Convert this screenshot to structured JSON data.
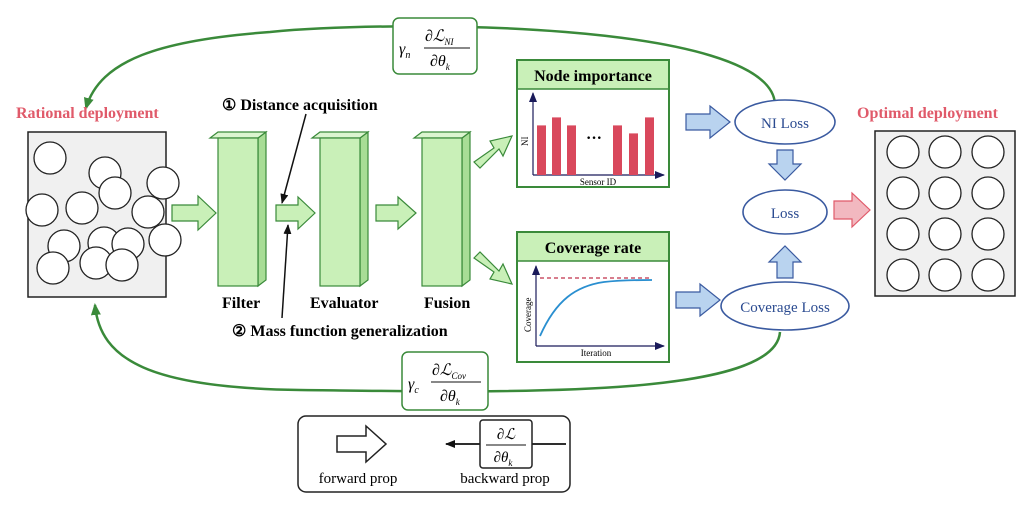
{
  "colors": {
    "green_stroke": "#3a8a3a",
    "green_fill": "#c9f0b8",
    "green_head": "#c9f0b8",
    "blue_stroke": "#3a5aa0",
    "blue_fill": "#b9d3ef",
    "red_text": "#e05a6a",
    "red_bar": "#d9485c",
    "pink_arrow": "#f2b8c0",
    "line_blue": "#2a8fd0"
  },
  "labels": {
    "rational": "Rational deployment",
    "optimal": "Optimal deployment",
    "step1": "① Distance acquisition",
    "step2": "② Mass function generalization",
    "filter": "Filter",
    "evaluator": "Evaluator",
    "fusion": "Fusion"
  },
  "node_importance": {
    "title": "Node importance",
    "ylabel": "NI",
    "xlabel": "Sensor ID",
    "ellipsis": "···",
    "bar_heights": [
      0.62,
      0.72,
      0.62,
      0.62,
      0.52,
      0.72
    ]
  },
  "coverage": {
    "title": "Coverage rate",
    "ylabel": "Coverage",
    "xlabel": "Iteration"
  },
  "losses": {
    "ni": "NI Loss",
    "loss": "Loss",
    "cov": "Coverage Loss"
  },
  "gradients": {
    "top": {
      "gamma": "γ",
      "gamma_sub": "n",
      "num": "∂ℒ",
      "num_sub": "NI",
      "den": "∂θ",
      "den_sub": "k"
    },
    "bottom": {
      "gamma": "γ",
      "gamma_sub": "c",
      "num": "∂ℒ",
      "num_sub": "Cov",
      "den": "∂θ",
      "den_sub": "k"
    }
  },
  "legend": {
    "forward": "forward prop",
    "backward": "backward prop",
    "num": "∂ℒ",
    "den": "∂θ",
    "den_sub": "k"
  }
}
